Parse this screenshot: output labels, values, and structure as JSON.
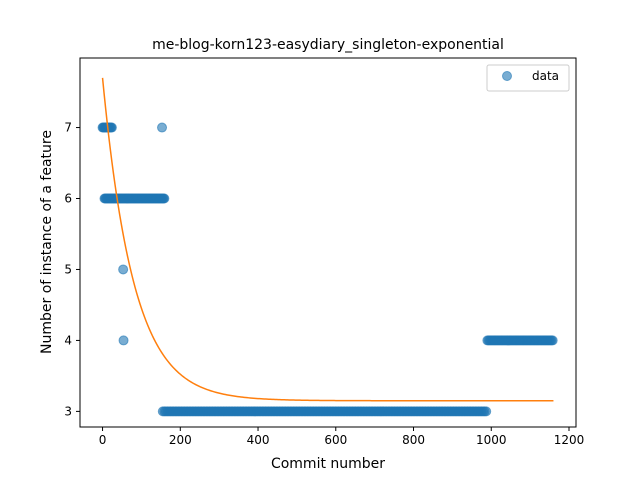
{
  "chart_data": {
    "type": "scatter",
    "title": "me-blog-korn123-easydiary_singleton-exponential",
    "xlabel": "Commit number",
    "ylabel": "Number of instance of a feature",
    "xlim": [
      -58,
      1218
    ],
    "ylim": [
      2.78,
      7.98
    ],
    "xticks": [
      0,
      200,
      400,
      600,
      800,
      1000,
      1200
    ],
    "yticks": [
      3,
      4,
      5,
      6,
      7
    ],
    "grid": false,
    "legend_position": "top-right",
    "series": [
      {
        "name": "data",
        "kind": "scatter",
        "color": "#1f77b4",
        "segments": [
          {
            "x_start": 0,
            "x_end": 25,
            "step": 2,
            "y": 7
          },
          {
            "x_start": 153,
            "x_end": 153,
            "step": 1,
            "y": 7
          },
          {
            "x_start": 5,
            "x_end": 160,
            "step": 2,
            "y": 6
          },
          {
            "x_start": 53,
            "x_end": 53,
            "step": 1,
            "y": 5
          },
          {
            "x_start": 54,
            "x_end": 54,
            "step": 1,
            "y": 4
          },
          {
            "x_start": 155,
            "x_end": 990,
            "step": 4,
            "y": 3
          },
          {
            "x_start": 990,
            "x_end": 1160,
            "step": 3,
            "y": 4
          }
        ]
      },
      {
        "name": "",
        "kind": "line",
        "color": "#ff7f0e",
        "curve": {
          "model": "exponential",
          "a": 4.55,
          "b": 0.0125,
          "c": 3.15,
          "x_start": 0,
          "x_end": 1160
        }
      }
    ]
  }
}
